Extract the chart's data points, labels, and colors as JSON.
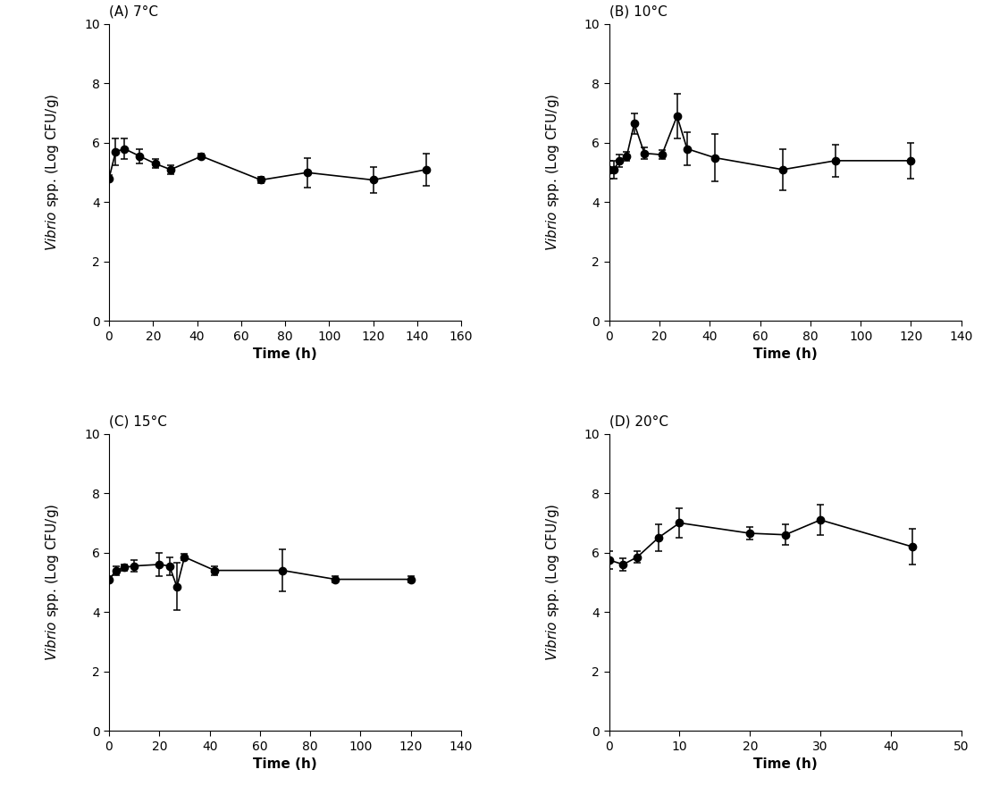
{
  "panels": [
    {
      "title": "(A) 7°C",
      "x": [
        0,
        3,
        7,
        14,
        21,
        28,
        42,
        69,
        90,
        120,
        144
      ],
      "y": [
        4.8,
        5.7,
        5.8,
        5.55,
        5.3,
        5.1,
        5.55,
        4.75,
        5.0,
        4.75,
        5.1
      ],
      "yerr": [
        0.1,
        0.45,
        0.35,
        0.25,
        0.15,
        0.15,
        0.1,
        0.1,
        0.5,
        0.45,
        0.55
      ],
      "xlim": [
        0,
        160
      ],
      "xticks": [
        0,
        20,
        40,
        60,
        80,
        100,
        120,
        140,
        160
      ]
    },
    {
      "title": "(B) 10°C",
      "x": [
        0,
        2,
        4,
        7,
        10,
        14,
        21,
        27,
        31,
        42,
        69,
        90,
        120
      ],
      "y": [
        5.1,
        5.1,
        5.4,
        5.55,
        6.65,
        5.65,
        5.6,
        6.9,
        5.8,
        5.5,
        5.1,
        5.4,
        5.4
      ],
      "yerr": [
        0.3,
        0.3,
        0.2,
        0.15,
        0.35,
        0.2,
        0.15,
        0.75,
        0.55,
        0.8,
        0.7,
        0.55,
        0.6
      ],
      "xlim": [
        0,
        140
      ],
      "xticks": [
        0,
        20,
        40,
        60,
        80,
        100,
        120,
        140
      ]
    },
    {
      "title": "(C) 15°C",
      "x": [
        0,
        3,
        6,
        10,
        20,
        24,
        27,
        30,
        42,
        69,
        90,
        120
      ],
      "y": [
        5.1,
        5.4,
        5.5,
        5.55,
        5.6,
        5.55,
        4.85,
        5.85,
        5.4,
        5.4,
        5.1,
        5.1
      ],
      "yerr": [
        0.1,
        0.15,
        0.1,
        0.2,
        0.4,
        0.3,
        0.8,
        0.1,
        0.15,
        0.7,
        0.1,
        0.1
      ],
      "xlim": [
        0,
        140
      ],
      "xticks": [
        0,
        20,
        40,
        60,
        80,
        100,
        120,
        140
      ]
    },
    {
      "title": "(D) 20°C",
      "x": [
        0,
        2,
        4,
        7,
        10,
        20,
        25,
        30,
        43
      ],
      "y": [
        5.75,
        5.6,
        5.85,
        6.5,
        7.0,
        6.65,
        6.6,
        7.1,
        6.2
      ],
      "yerr": [
        0.3,
        0.2,
        0.2,
        0.45,
        0.5,
        0.2,
        0.35,
        0.5,
        0.6
      ],
      "xlim": [
        0,
        50
      ],
      "xticks": [
        0,
        10,
        20,
        30,
        40,
        50
      ]
    }
  ],
  "xlabel": "Time (h)",
  "ylim": [
    0,
    10
  ],
  "yticks": [
    0,
    2,
    4,
    6,
    8,
    10
  ],
  "markersize": 6,
  "color": "black",
  "linewidth": 1.2,
  "capsize": 3,
  "elinewidth": 1.1,
  "title_fontsize": 11,
  "label_fontsize": 11,
  "tick_fontsize": 10,
  "ylabel_offset": -0.16
}
